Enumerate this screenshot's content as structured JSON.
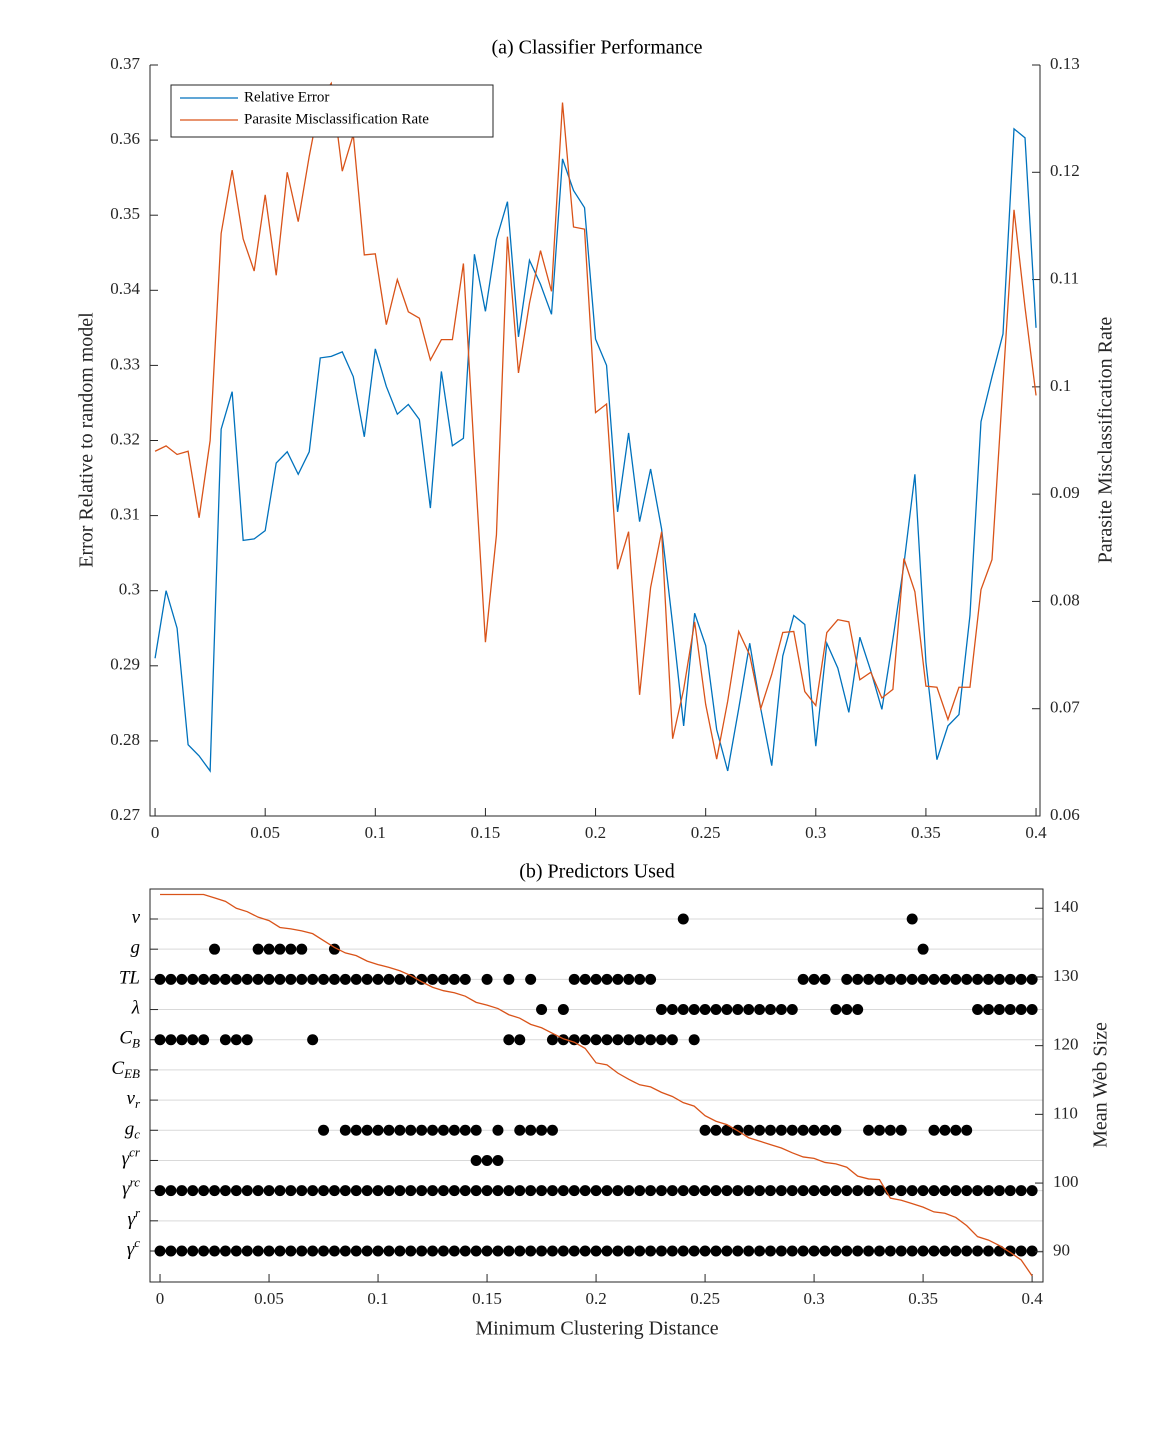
{
  "chart_data": [
    {
      "type": "line",
      "title": "(a) Classifier Performance",
      "ylabel": "Error Relative to random model",
      "y2label": "Parasite Misclassification Rate",
      "x": [
        0,
        0.005,
        0.01,
        0.015,
        0.02,
        0.025,
        0.03,
        0.035,
        0.04,
        0.045,
        0.05,
        0.055,
        0.06,
        0.065,
        0.07,
        0.075,
        0.08,
        0.085,
        0.09,
        0.095,
        0.1,
        0.105,
        0.11,
        0.115,
        0.12,
        0.125,
        0.13,
        0.135,
        0.14,
        0.145,
        0.15,
        0.155,
        0.16,
        0.165,
        0.17,
        0.175,
        0.18,
        0.185,
        0.19,
        0.195,
        0.2,
        0.205,
        0.21,
        0.215,
        0.22,
        0.225,
        0.23,
        0.235,
        0.24,
        0.245,
        0.25,
        0.255,
        0.26,
        0.265,
        0.27,
        0.275,
        0.28,
        0.285,
        0.29,
        0.295,
        0.3,
        0.305,
        0.31,
        0.315,
        0.32,
        0.325,
        0.33,
        0.335,
        0.34,
        0.345,
        0.35,
        0.355,
        0.36,
        0.365,
        0.37,
        0.375,
        0.38,
        0.385,
        0.39,
        0.395,
        0.4
      ],
      "xlim": [
        -0.0023,
        0.4018
      ],
      "xticks": [
        0,
        0.05,
        0.1,
        0.15,
        0.2,
        0.25,
        0.3,
        0.35,
        0.4
      ],
      "ylim": [
        0.27,
        0.37
      ],
      "yticks": [
        0.27,
        0.28,
        0.29,
        0.3,
        0.31,
        0.32,
        0.33,
        0.34,
        0.35,
        0.36,
        0.37
      ],
      "y2lim": [
        0.06,
        0.13
      ],
      "y2ticks": [
        0.06,
        0.07,
        0.08,
        0.09,
        0.1,
        0.11,
        0.12,
        0.13
      ],
      "legend": "upper left",
      "series": [
        {
          "name": "Relative Error",
          "color": "#0072bd",
          "values": [
            0.291,
            0.3,
            0.295,
            0.2795,
            0.278,
            0.276,
            0.3215,
            0.3265,
            0.3067,
            0.3069,
            0.308,
            0.317,
            0.3185,
            0.3155,
            0.3185,
            0.331,
            0.3312,
            0.3318,
            0.3285,
            0.3205,
            0.3322,
            0.3272,
            0.3235,
            0.3248,
            0.3228,
            0.311,
            0.3292,
            0.3193,
            0.3203,
            0.3448,
            0.3372,
            0.3468,
            0.3518,
            0.3338,
            0.344,
            0.3408,
            0.3368,
            0.3575,
            0.3533,
            0.351,
            0.3335,
            0.33,
            0.3105,
            0.321,
            0.3092,
            0.3162,
            0.3082,
            0.2955,
            0.282,
            0.297,
            0.2927,
            0.2815,
            0.276,
            0.2843,
            0.293,
            0.2843,
            0.2767,
            0.2913,
            0.2967,
            0.2955,
            0.2793,
            0.293,
            0.2897,
            0.2838,
            0.2938,
            0.2893,
            0.2842,
            0.2935,
            0.3035,
            0.3155,
            0.2905,
            0.2775,
            0.282,
            0.2835,
            0.2967,
            0.3225,
            0.3285,
            0.3342,
            0.3615,
            0.3603,
            0.335
          ]
        },
        {
          "name": "Parasite Misclassification Rate",
          "color": "#d95319",
          "axis": "y2",
          "values": [
            0.094,
            0.0945,
            0.0937,
            0.094,
            0.0878,
            0.095,
            0.1143,
            0.1202,
            0.1138,
            0.1108,
            0.1179,
            0.1104,
            0.12,
            0.1154,
            0.1215,
            0.1268,
            0.1283,
            0.1201,
            0.1235,
            0.1123,
            0.1124,
            0.1058,
            0.11,
            0.107,
            0.1064,
            0.1025,
            0.1044,
            0.1044,
            0.1115,
            0.0935,
            0.0762,
            0.0862,
            0.114,
            0.1013,
            0.1078,
            0.1127,
            0.1089,
            0.1265,
            0.1149,
            0.1147,
            0.0976,
            0.0984,
            0.083,
            0.0865,
            0.0713,
            0.0813,
            0.0865,
            0.0672,
            0.0718,
            0.0781,
            0.0704,
            0.0653,
            0.0707,
            0.0772,
            0.075,
            0.07,
            0.0732,
            0.0771,
            0.0772,
            0.0716,
            0.0703,
            0.0771,
            0.0783,
            0.0781,
            0.0727,
            0.0734,
            0.071,
            0.0718,
            0.084,
            0.0809,
            0.0721,
            0.072,
            0.069,
            0.072,
            0.072,
            0.0811,
            0.0839,
            0.1003,
            0.1165,
            0.1074,
            0.0992
          ]
        }
      ]
    },
    {
      "type": "dot-matrix",
      "title": "(b) Predictors Used",
      "xlabel": "Minimum Clustering Distance",
      "y2label": "Mean Web Size",
      "xlim": [
        -0.0046,
        0.405
      ],
      "xticks": [
        0,
        0.05,
        0.1,
        0.15,
        0.2,
        0.25,
        0.3,
        0.35,
        0.4
      ],
      "y2lim": [
        85.6,
        142.8
      ],
      "y2ticks": [
        90,
        100,
        110,
        120,
        130,
        140
      ],
      "rows": [
        {
          "symbol": "v",
          "x": [
            0.24,
            0.345
          ]
        },
        {
          "symbol": "g",
          "x": [
            0.025,
            0.045,
            0.05,
            0.055,
            0.06,
            0.065,
            0.08,
            0.35
          ]
        },
        {
          "symbol": "TL",
          "x": [
            0,
            0.005,
            0.01,
            0.015,
            0.02,
            0.025,
            0.03,
            0.035,
            0.04,
            0.045,
            0.05,
            0.055,
            0.06,
            0.065,
            0.07,
            0.075,
            0.08,
            0.085,
            0.09,
            0.095,
            0.1,
            0.105,
            0.11,
            0.115,
            0.12,
            0.125,
            0.13,
            0.135,
            0.14,
            0.15,
            0.16,
            0.17,
            0.19,
            0.195,
            0.2,
            0.205,
            0.21,
            0.215,
            0.22,
            0.225,
            0.295,
            0.3,
            0.305,
            0.315,
            0.32,
            0.325,
            0.33,
            0.335,
            0.34,
            0.345,
            0.35,
            0.355,
            0.36,
            0.365,
            0.37,
            0.375,
            0.38,
            0.385,
            0.39,
            0.395,
            0.4
          ]
        },
        {
          "symbol": "λ",
          "x": [
            0.175,
            0.185,
            0.23,
            0.235,
            0.24,
            0.245,
            0.25,
            0.255,
            0.26,
            0.265,
            0.27,
            0.275,
            0.28,
            0.285,
            0.29,
            0.31,
            0.315,
            0.32,
            0.375,
            0.38,
            0.385,
            0.39,
            0.395,
            0.4
          ]
        },
        {
          "symbol": "C",
          "sub": "B",
          "x": [
            0,
            0.005,
            0.01,
            0.015,
            0.02,
            0.03,
            0.035,
            0.04,
            0.07,
            0.16,
            0.165,
            0.18,
            0.185,
            0.19,
            0.195,
            0.2,
            0.205,
            0.21,
            0.215,
            0.22,
            0.225,
            0.23,
            0.235,
            0.245
          ]
        },
        {
          "symbol": "C",
          "sub": "EB",
          "x": []
        },
        {
          "symbol": "v",
          "sub": "r",
          "x": []
        },
        {
          "symbol": "g",
          "sub": "c",
          "x": [
            0.075,
            0.085,
            0.09,
            0.095,
            0.1,
            0.105,
            0.11,
            0.115,
            0.12,
            0.125,
            0.13,
            0.135,
            0.14,
            0.145,
            0.155,
            0.165,
            0.17,
            0.175,
            0.18,
            0.25,
            0.255,
            0.26,
            0.265,
            0.27,
            0.275,
            0.28,
            0.285,
            0.29,
            0.295,
            0.3,
            0.305,
            0.31,
            0.325,
            0.33,
            0.335,
            0.34,
            0.355,
            0.36,
            0.365,
            0.37
          ]
        },
        {
          "symbol": "γ",
          "sup": "cr",
          "x": [
            0.145,
            0.15,
            0.155
          ]
        },
        {
          "symbol": "γ",
          "sup": "rc",
          "x": [
            0,
            0.005,
            0.01,
            0.015,
            0.02,
            0.025,
            0.03,
            0.035,
            0.04,
            0.045,
            0.05,
            0.055,
            0.06,
            0.065,
            0.07,
            0.075,
            0.08,
            0.085,
            0.09,
            0.095,
            0.1,
            0.105,
            0.11,
            0.115,
            0.12,
            0.125,
            0.13,
            0.135,
            0.14,
            0.145,
            0.15,
            0.155,
            0.16,
            0.165,
            0.17,
            0.175,
            0.18,
            0.185,
            0.19,
            0.195,
            0.2,
            0.205,
            0.21,
            0.215,
            0.22,
            0.225,
            0.23,
            0.235,
            0.24,
            0.245,
            0.25,
            0.255,
            0.26,
            0.265,
            0.27,
            0.275,
            0.28,
            0.285,
            0.29,
            0.295,
            0.3,
            0.305,
            0.31,
            0.315,
            0.32,
            0.325,
            0.33,
            0.335,
            0.34,
            0.345,
            0.35,
            0.355,
            0.36,
            0.365,
            0.37,
            0.375,
            0.38,
            0.385,
            0.39,
            0.395,
            0.4
          ]
        },
        {
          "symbol": "γ",
          "sup": "r",
          "x": []
        },
        {
          "symbol": "γ",
          "sup": "c",
          "x": [
            0,
            0.005,
            0.01,
            0.015,
            0.02,
            0.025,
            0.03,
            0.035,
            0.04,
            0.045,
            0.05,
            0.055,
            0.06,
            0.065,
            0.07,
            0.075,
            0.08,
            0.085,
            0.09,
            0.095,
            0.1,
            0.105,
            0.11,
            0.115,
            0.12,
            0.125,
            0.13,
            0.135,
            0.14,
            0.145,
            0.15,
            0.155,
            0.16,
            0.165,
            0.17,
            0.175,
            0.18,
            0.185,
            0.19,
            0.195,
            0.2,
            0.205,
            0.21,
            0.215,
            0.22,
            0.225,
            0.23,
            0.235,
            0.24,
            0.245,
            0.25,
            0.255,
            0.26,
            0.265,
            0.27,
            0.275,
            0.28,
            0.285,
            0.29,
            0.295,
            0.3,
            0.305,
            0.31,
            0.315,
            0.32,
            0.325,
            0.33,
            0.335,
            0.34,
            0.345,
            0.35,
            0.355,
            0.36,
            0.365,
            0.37,
            0.375,
            0.38,
            0.385,
            0.39,
            0.395,
            0.4
          ]
        }
      ],
      "series": [
        {
          "color": "#d95319",
          "axis": "y2",
          "x": [
            0,
            0.005,
            0.01,
            0.015,
            0.02,
            0.025,
            0.03,
            0.035,
            0.04,
            0.045,
            0.05,
            0.055,
            0.06,
            0.065,
            0.07,
            0.075,
            0.08,
            0.085,
            0.09,
            0.095,
            0.1,
            0.105,
            0.11,
            0.115,
            0.12,
            0.125,
            0.13,
            0.135,
            0.14,
            0.145,
            0.15,
            0.155,
            0.16,
            0.165,
            0.17,
            0.175,
            0.18,
            0.185,
            0.19,
            0.195,
            0.2,
            0.205,
            0.21,
            0.215,
            0.22,
            0.225,
            0.23,
            0.235,
            0.24,
            0.245,
            0.25,
            0.255,
            0.26,
            0.265,
            0.27,
            0.275,
            0.28,
            0.285,
            0.29,
            0.295,
            0.3,
            0.305,
            0.31,
            0.315,
            0.32,
            0.325,
            0.33,
            0.335,
            0.34,
            0.345,
            0.35,
            0.355,
            0.36,
            0.365,
            0.37,
            0.375,
            0.38,
            0.385,
            0.39,
            0.395,
            0.4
          ],
          "values": [
            142,
            142,
            142,
            142,
            142,
            141.5,
            141,
            140,
            139.5,
            138.7,
            138.2,
            137.2,
            137,
            136.7,
            136.3,
            135.3,
            134.3,
            133.5,
            133.1,
            132.3,
            131.8,
            131.4,
            130.9,
            130.2,
            129.3,
            128.5,
            128,
            127.7,
            127.2,
            126.3,
            125.9,
            125.4,
            124.5,
            124,
            123.1,
            122.6,
            121.8,
            121,
            120.5,
            119.6,
            117.5,
            117.2,
            116,
            115.1,
            114.3,
            114,
            113.2,
            112.6,
            111.7,
            111.2,
            109.8,
            109,
            108.5,
            107.6,
            106.6,
            106.1,
            105.6,
            105.1,
            104.4,
            103.8,
            103.6,
            103,
            102.8,
            102.3,
            101,
            100.6,
            100.5,
            97.8,
            97.5,
            97,
            96.5,
            95.8,
            95.6,
            95,
            93.8,
            92.2,
            91.7,
            90.9,
            89.9,
            88.8,
            86.5
          ]
        }
      ]
    }
  ]
}
